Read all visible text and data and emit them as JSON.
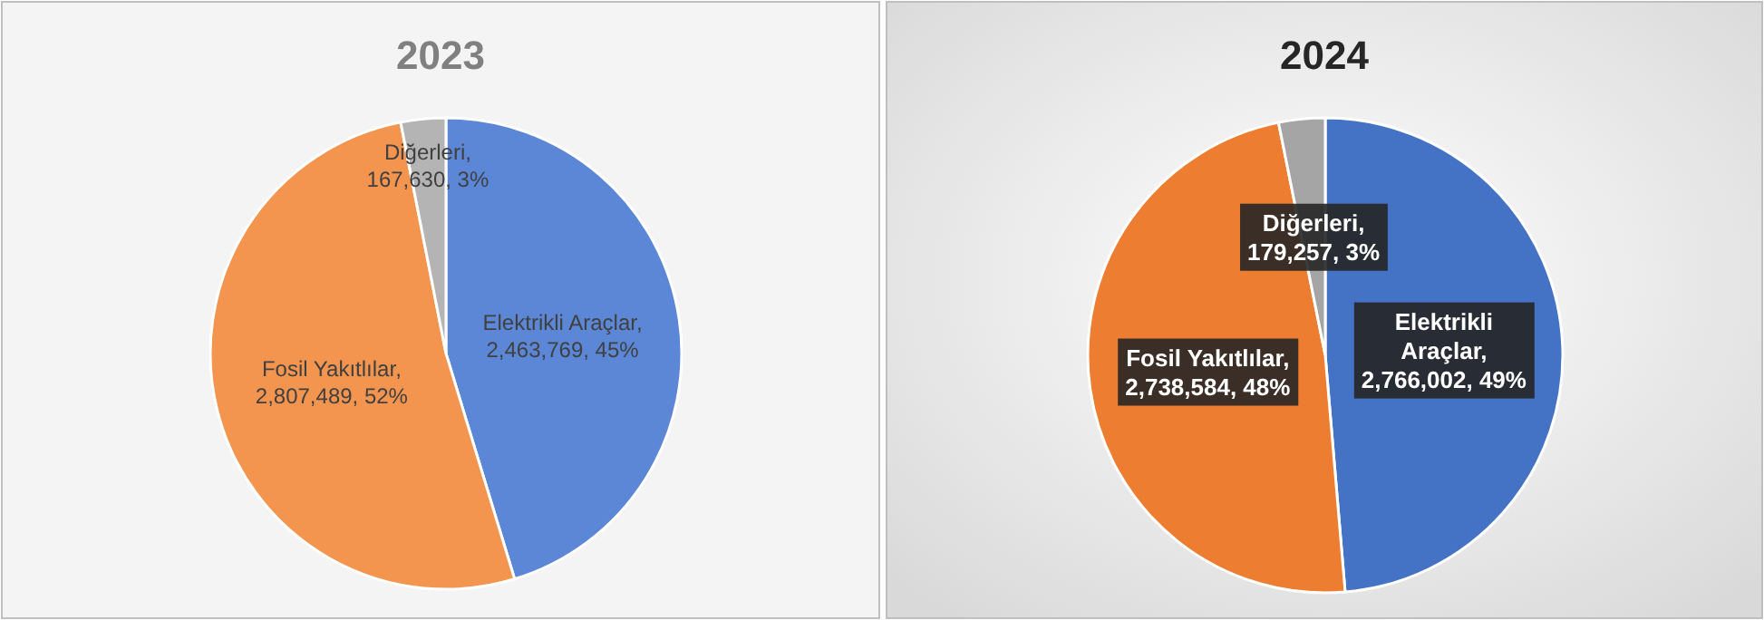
{
  "chart_data": [
    {
      "type": "pie",
      "title": "2023",
      "categories": [
        "Elektrikli Araçlar",
        "Fosil Yakıtlılar",
        "Diğerleri"
      ],
      "values": [
        2463769,
        2807489,
        167630
      ],
      "colors": [
        "#5b87d6",
        "#f3944f",
        "#b4b4b4"
      ],
      "value_labels": [
        ",\n2,463,769,  45%",
        ",\n2,807,489,  52%",
        ",\n167,630,  3%"
      ]
    },
    {
      "type": "pie",
      "title": "2024",
      "categories": [
        "Elektrikli Araçlar",
        "Fosil Yakıtlılar",
        "Diğerleri"
      ],
      "values": [
        2766002,
        2738584,
        179257
      ],
      "colors": [
        "#4472c4",
        "#ed7d31",
        "#a5a5a5"
      ],
      "value_labels": [
        ",\n2,766,002, 49%",
        ",\n2,738,584, 48%",
        ",\n179,257, 3%"
      ]
    }
  ]
}
